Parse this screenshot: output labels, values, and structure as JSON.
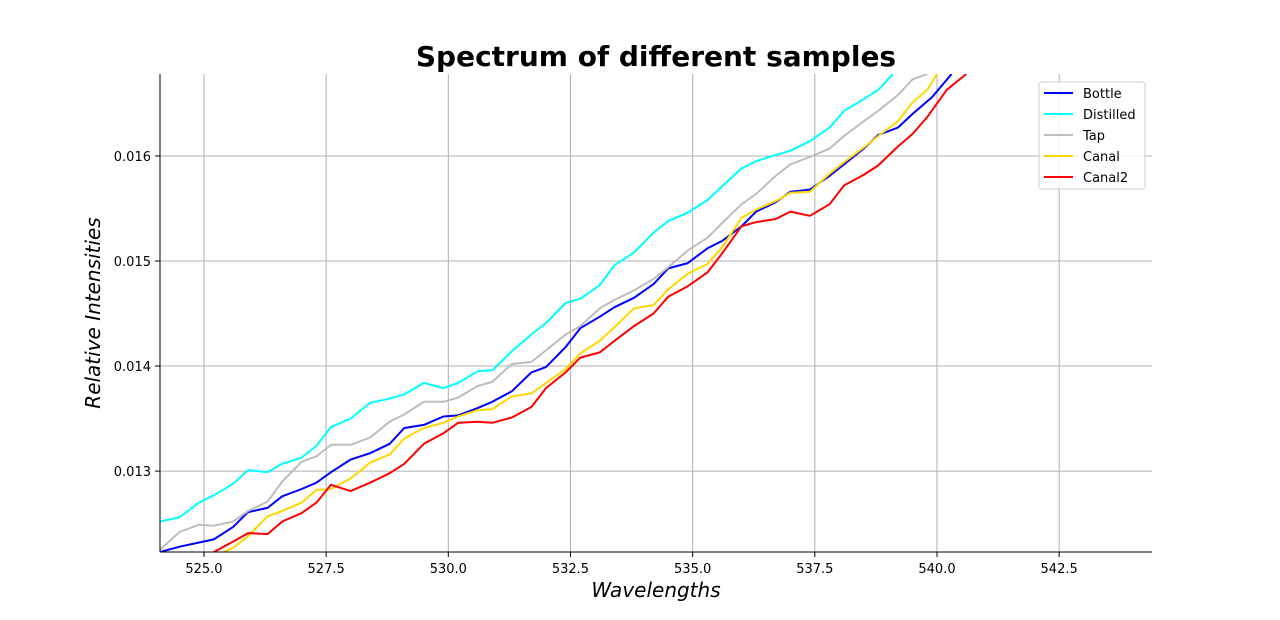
{
  "chart_data": {
    "type": "line",
    "title": "Spectrum of different samples",
    "xlabel": "Wavelengths",
    "ylabel": "Relative Intensities",
    "xlim": [
      524.1,
      544.4
    ],
    "ylim": [
      0.01223,
      0.01678
    ],
    "xticks": [
      525.0,
      527.5,
      530.0,
      532.5,
      535.0,
      537.5,
      540.0,
      542.5
    ],
    "xtick_labels": [
      "525.0",
      "527.5",
      "530.0",
      "532.5",
      "535.0",
      "537.5",
      "540.0",
      "542.5"
    ],
    "yticks": [
      0.013,
      0.014,
      0.015,
      0.016
    ],
    "ytick_labels": [
      "0.013",
      "0.014",
      "0.015",
      "0.016"
    ],
    "grid": true,
    "legend_position": "top-right",
    "series": [
      {
        "name": "Bottle",
        "color": "#0000ff",
        "x": [
          524.1,
          524.5,
          524.9,
          525.2,
          525.6,
          525.9,
          526.3,
          526.6,
          527.0,
          527.3,
          527.6,
          528.0,
          528.4,
          528.8,
          529.1,
          529.5,
          529.9,
          530.2,
          530.6,
          530.9,
          531.3,
          531.7,
          532.0,
          532.4,
          532.7,
          533.1,
          533.4,
          533.8,
          534.2,
          534.5,
          534.9,
          535.3,
          535.6,
          536.0,
          536.3,
          536.7,
          537.0,
          537.4,
          537.8,
          538.1,
          538.5,
          538.8,
          539.2,
          539.5,
          539.9,
          540.3
        ],
        "y": [
          0.01223,
          0.01228,
          0.01232,
          0.01235,
          0.01247,
          0.01261,
          0.01265,
          0.01276,
          0.01283,
          0.01289,
          0.01299,
          0.01311,
          0.01317,
          0.01326,
          0.01341,
          0.01344,
          0.01352,
          0.01353,
          0.0136,
          0.01366,
          0.01376,
          0.01394,
          0.01399,
          0.01418,
          0.01436,
          0.01447,
          0.01456,
          0.01465,
          0.01478,
          0.01493,
          0.01498,
          0.01512,
          0.01519,
          0.01533,
          0.01547,
          0.01556,
          0.01566,
          0.01568,
          0.01581,
          0.01592,
          0.01607,
          0.0162,
          0.01627,
          0.0164,
          0.01656,
          0.01678
        ]
      },
      {
        "name": "Distilled",
        "color": "#00ffff",
        "x": [
          524.1,
          524.5,
          524.9,
          525.2,
          525.6,
          525.9,
          526.3,
          526.6,
          527.0,
          527.3,
          527.6,
          528.0,
          528.4,
          528.8,
          529.1,
          529.5,
          529.9,
          530.2,
          530.6,
          530.9,
          531.3,
          531.7,
          532.0,
          532.4,
          532.7,
          533.1,
          533.4,
          533.8,
          534.2,
          534.5,
          534.9,
          535.3,
          535.6,
          536.0,
          536.3,
          536.7,
          537.0,
          537.4,
          537.8,
          538.1,
          538.5,
          538.8,
          539.1
        ],
        "y": [
          0.01252,
          0.01256,
          0.0127,
          0.01277,
          0.01288,
          0.01301,
          0.01299,
          0.01307,
          0.01313,
          0.01324,
          0.01342,
          0.0135,
          0.01365,
          0.01369,
          0.01373,
          0.01384,
          0.01379,
          0.01384,
          0.01395,
          0.01396,
          0.01414,
          0.0143,
          0.01441,
          0.0146,
          0.01464,
          0.01477,
          0.01496,
          0.01508,
          0.01527,
          0.01538,
          0.01546,
          0.01558,
          0.01571,
          0.01588,
          0.01595,
          0.01601,
          0.01605,
          0.01614,
          0.01627,
          0.01643,
          0.01654,
          0.01663,
          0.01678
        ]
      },
      {
        "name": "Tap",
        "color": "#bdbdbd",
        "x": [
          524.1,
          524.5,
          524.9,
          525.2,
          525.6,
          525.9,
          526.3,
          526.6,
          527.0,
          527.3,
          527.6,
          528.0,
          528.4,
          528.8,
          529.1,
          529.5,
          529.9,
          530.2,
          530.6,
          530.9,
          531.3,
          531.7,
          532.0,
          532.4,
          532.7,
          533.1,
          533.4,
          533.8,
          534.2,
          534.5,
          534.9,
          535.3,
          535.6,
          536.0,
          536.3,
          536.7,
          537.0,
          537.4,
          537.8,
          538.1,
          538.5,
          538.8,
          539.2,
          539.5,
          539.8
        ],
        "y": [
          0.01225,
          0.01242,
          0.01249,
          0.01248,
          0.01252,
          0.01262,
          0.01271,
          0.0129,
          0.01309,
          0.01314,
          0.01325,
          0.01325,
          0.01332,
          0.01347,
          0.01354,
          0.01366,
          0.01366,
          0.0137,
          0.01381,
          0.01385,
          0.01402,
          0.01404,
          0.01415,
          0.0143,
          0.01438,
          0.01455,
          0.01463,
          0.01472,
          0.01483,
          0.01494,
          0.0151,
          0.01522,
          0.01536,
          0.01554,
          0.01564,
          0.01581,
          0.01592,
          0.01599,
          0.01607,
          0.01619,
          0.01633,
          0.01643,
          0.01658,
          0.01673,
          0.01678
        ]
      },
      {
        "name": "Canal",
        "color": "#ffd700",
        "x": [
          525.4,
          525.6,
          525.9,
          526.3,
          526.6,
          527.0,
          527.3,
          527.6,
          528.0,
          528.4,
          528.8,
          529.1,
          529.5,
          529.9,
          530.2,
          530.6,
          530.9,
          531.3,
          531.7,
          532.0,
          532.4,
          532.7,
          533.1,
          533.4,
          533.8,
          534.2,
          534.5,
          534.9,
          535.3,
          535.6,
          536.0,
          536.3,
          536.7,
          537.0,
          537.4,
          537.8,
          538.1,
          538.5,
          538.8,
          539.2,
          539.5,
          539.8,
          540.0
        ],
        "y": [
          0.01223,
          0.01227,
          0.01238,
          0.01257,
          0.01262,
          0.0127,
          0.01282,
          0.01283,
          0.01293,
          0.01308,
          0.01316,
          0.01331,
          0.01341,
          0.01346,
          0.01352,
          0.01358,
          0.01359,
          0.01371,
          0.01374,
          0.01384,
          0.01397,
          0.01412,
          0.01424,
          0.01437,
          0.01455,
          0.01458,
          0.01473,
          0.01488,
          0.01497,
          0.01513,
          0.01541,
          0.01549,
          0.01557,
          0.01565,
          0.01566,
          0.01583,
          0.01594,
          0.01608,
          0.01619,
          0.01633,
          0.01651,
          0.01663,
          0.01678
        ]
      },
      {
        "name": "Canal2",
        "color": "#ff0000",
        "x": [
          525.2,
          525.6,
          525.9,
          526.3,
          526.6,
          527.0,
          527.3,
          527.6,
          528.0,
          528.4,
          528.8,
          529.1,
          529.5,
          529.9,
          530.2,
          530.6,
          530.9,
          531.3,
          531.7,
          532.0,
          532.4,
          532.7,
          533.1,
          533.4,
          533.8,
          534.2,
          534.5,
          534.9,
          535.3,
          535.6,
          536.0,
          536.3,
          536.7,
          537.0,
          537.4,
          537.8,
          538.1,
          538.5,
          538.8,
          539.2,
          539.5,
          539.8,
          540.2,
          540.6
        ],
        "y": [
          0.01223,
          0.01233,
          0.01241,
          0.0124,
          0.01252,
          0.0126,
          0.0127,
          0.01287,
          0.01281,
          0.01289,
          0.01298,
          0.01307,
          0.01326,
          0.01336,
          0.01346,
          0.01347,
          0.01346,
          0.01351,
          0.01361,
          0.01379,
          0.01394,
          0.01408,
          0.01413,
          0.01424,
          0.01438,
          0.0145,
          0.01466,
          0.01476,
          0.01489,
          0.01507,
          0.01533,
          0.01537,
          0.0154,
          0.01547,
          0.01543,
          0.01554,
          0.01572,
          0.01582,
          0.01591,
          0.01609,
          0.01621,
          0.01637,
          0.01663,
          0.01678
        ]
      }
    ]
  }
}
